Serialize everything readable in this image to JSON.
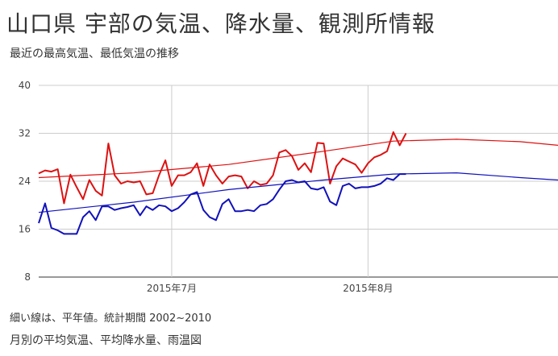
{
  "title": "山口県 宇部の気温、降水量、観測所情報",
  "subtitle": "最近の最高気温、最低気温の推移",
  "note": "細い線は、平年値。統計期間 2002~2010",
  "next_link": "月別の平均気温、平均降水量、雨温図",
  "chart_data": {
    "type": "line",
    "ylim": [
      8,
      40
    ],
    "y_ticks": [
      8,
      16,
      24,
      32,
      40
    ],
    "x_range": [
      "2015-06-10",
      "2015-08-31"
    ],
    "x_ticks": [
      {
        "label": "2015年7月",
        "date": "2015-07-01"
      },
      {
        "label": "2015年8月",
        "date": "2015-08-01"
      }
    ],
    "grid": true,
    "series": [
      {
        "color": "#dd1111",
        "x_start": "2015-06-10",
        "values": [
          25.3,
          25.8,
          25.6,
          26.0,
          20.3,
          25.1,
          23.0,
          21.0,
          24.2,
          22.4,
          21.6,
          30.3,
          25.0,
          23.6,
          24.0,
          23.8,
          24.0,
          21.8,
          22.0,
          25.0,
          27.5,
          23.2,
          25.0,
          25.0,
          25.5,
          27.0,
          23.2,
          26.8,
          25.0,
          23.6,
          24.8,
          25.0,
          24.8,
          22.8,
          24.0,
          23.4,
          23.6,
          25.0,
          28.8,
          29.2,
          28.2,
          25.9,
          27.0,
          25.5,
          30.4,
          30.3,
          23.6,
          26.5,
          27.8,
          27.3,
          26.8,
          25.4,
          27.0,
          28.0,
          28.4,
          29.0,
          32.2,
          30.0,
          32.0
        ]
      },
      {
        "color": "#1111bb",
        "x_start": "2015-06-10",
        "values": [
          17.0,
          20.3,
          16.2,
          15.8,
          15.2,
          15.2,
          15.2,
          18.0,
          19.0,
          17.5,
          19.8,
          19.8,
          19.2,
          19.5,
          19.7,
          20.0,
          18.3,
          19.8,
          19.2,
          20.0,
          19.8,
          19.0,
          19.5,
          20.5,
          21.8,
          22.2,
          19.2,
          18.0,
          17.5,
          20.2,
          21.0,
          19.0,
          19.0,
          19.2,
          19.0,
          20.0,
          20.2,
          21.0,
          22.6,
          24.0,
          24.2,
          23.8,
          24.0,
          22.8,
          22.6,
          23.0,
          20.6,
          20.0,
          23.2,
          23.6,
          22.8,
          23.0,
          23.0,
          23.2,
          23.6,
          24.5,
          24.2,
          25.2,
          25.2
        ]
      },
      {
        "color": "#dd1111",
        "style": "normal",
        "x": [
          "2015-06-10",
          "2015-06-25",
          "2015-07-10",
          "2015-07-25",
          "2015-08-05",
          "2015-08-15",
          "2015-08-25",
          "2015-08-31"
        ],
        "values": [
          24.6,
          25.4,
          26.8,
          29.0,
          30.7,
          31.0,
          30.6,
          30.0
        ]
      },
      {
        "color": "#1111bb",
        "style": "normal",
        "x": [
          "2015-06-10",
          "2015-06-25",
          "2015-07-10",
          "2015-07-25",
          "2015-08-05",
          "2015-08-15",
          "2015-08-25",
          "2015-08-31"
        ],
        "values": [
          18.8,
          20.5,
          22.6,
          24.2,
          25.2,
          25.4,
          24.6,
          24.2
        ]
      }
    ]
  }
}
